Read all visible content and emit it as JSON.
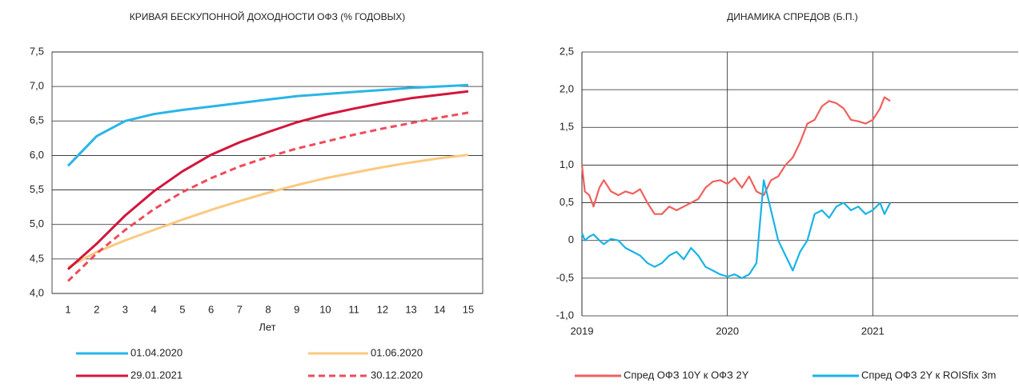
{
  "chart_data": [
    {
      "type": "line",
      "title": "КРИВАЯ БЕСКУПОННОЙ ДОХОДНОСТИ ОФЗ (% ГОДОВЫХ)",
      "x_label": "Лет",
      "categories": [
        "1",
        "2",
        "3",
        "4",
        "5",
        "6",
        "7",
        "8",
        "9",
        "10",
        "11",
        "12",
        "13",
        "14",
        "15"
      ],
      "ylim": [
        4.0,
        7.5
      ],
      "yticks": [
        {
          "value": 4.0,
          "label": "4,0"
        },
        {
          "value": 4.5,
          "label": "4,5"
        },
        {
          "value": 5.0,
          "label": "5,0"
        },
        {
          "value": 5.5,
          "label": "5,5"
        },
        {
          "value": 6.0,
          "label": "6,0"
        },
        {
          "value": 6.5,
          "label": "6,5"
        },
        {
          "value": 7.0,
          "label": "7,0"
        },
        {
          "value": 7.5,
          "label": "7,5"
        }
      ],
      "grid": true,
      "series": [
        {
          "name": "01.04.2020",
          "color": "#29b5e8",
          "dashed": false,
          "values": [
            5.85,
            6.28,
            6.5,
            6.6,
            6.66,
            6.71,
            6.76,
            6.81,
            6.86,
            6.89,
            6.92,
            6.95,
            6.98,
            7.0,
            7.02
          ]
        },
        {
          "name": "01.06.2020",
          "color": "#fcc980",
          "dashed": false,
          "values": [
            4.38,
            4.6,
            4.77,
            4.92,
            5.07,
            5.21,
            5.34,
            5.46,
            5.57,
            5.67,
            5.75,
            5.83,
            5.9,
            5.96,
            6.01
          ]
        },
        {
          "name": "29.01.2021",
          "color": "#d2163c",
          "dashed": false,
          "values": [
            4.35,
            4.72,
            5.13,
            5.48,
            5.77,
            6.01,
            6.19,
            6.34,
            6.48,
            6.59,
            6.68,
            6.76,
            6.83,
            6.88,
            6.93
          ]
        },
        {
          "name": "30.12.2020",
          "color": "#ef4b5b",
          "dashed": true,
          "values": [
            4.18,
            4.58,
            4.92,
            5.22,
            5.47,
            5.67,
            5.84,
            5.98,
            6.1,
            6.2,
            6.3,
            6.39,
            6.47,
            6.55,
            6.62
          ]
        }
      ]
    },
    {
      "type": "timeline",
      "title": "ДИНАМИКА СПРЕДОВ (Б.П.)",
      "x": [
        2019.0,
        2019.02,
        2019.05,
        2019.08,
        2019.12,
        2019.15,
        2019.2,
        2019.25,
        2019.3,
        2019.35,
        2019.4,
        2019.45,
        2019.5,
        2019.55,
        2019.6,
        2019.65,
        2019.7,
        2019.75,
        2019.8,
        2019.85,
        2019.9,
        2019.95,
        2020.0,
        2020.05,
        2020.1,
        2020.15,
        2020.2,
        2020.25,
        2020.3,
        2020.35,
        2020.4,
        2020.45,
        2020.5,
        2020.55,
        2020.6,
        2020.65,
        2020.7,
        2020.75,
        2020.8,
        2020.85,
        2020.9,
        2020.95,
        2021.0,
        2021.05,
        2021.08,
        2021.12
      ],
      "xlim": [
        2019,
        2022
      ],
      "xticks": [
        2019,
        2020,
        2021
      ],
      "ylim": [
        -1.0,
        2.5
      ],
      "yticks": [
        {
          "value": -1.0,
          "label": "-1,0"
        },
        {
          "value": -0.5,
          "label": "-0,5"
        },
        0,
        {
          "value": 0.5,
          "label": "0,5"
        },
        {
          "value": 1.0,
          "label": "1,0"
        },
        {
          "value": 1.5,
          "label": "1,5"
        },
        {
          "value": 2.0,
          "label": "2,0"
        },
        {
          "value": 2.5,
          "label": "2,5"
        }
      ],
      "grid": true,
      "series": [
        {
          "name": "Спред ОФЗ 10Y к ОФЗ 2Y",
          "color": "#f0605d",
          "values": [
            1.0,
            0.65,
            0.6,
            0.45,
            0.7,
            0.8,
            0.65,
            0.6,
            0.65,
            0.62,
            0.68,
            0.5,
            0.35,
            0.35,
            0.45,
            0.4,
            0.45,
            0.5,
            0.55,
            0.7,
            0.78,
            0.8,
            0.75,
            0.83,
            0.7,
            0.85,
            0.65,
            0.6,
            0.8,
            0.85,
            1.0,
            1.1,
            1.3,
            1.55,
            1.6,
            1.78,
            1.85,
            1.82,
            1.75,
            1.6,
            1.58,
            1.55,
            1.6,
            1.75,
            1.9,
            1.85
          ]
        },
        {
          "name": "Спред ОФЗ 2Y к ROISfix 3m",
          "color": "#1ab3e6",
          "values": [
            0.1,
            0.0,
            0.05,
            0.08,
            0.0,
            -0.05,
            0.02,
            0.0,
            -0.1,
            -0.15,
            -0.2,
            -0.3,
            -0.35,
            -0.3,
            -0.2,
            -0.15,
            -0.25,
            -0.1,
            -0.2,
            -0.35,
            -0.4,
            -0.45,
            -0.48,
            -0.45,
            -0.5,
            -0.45,
            -0.3,
            0.8,
            0.4,
            0.0,
            -0.2,
            -0.4,
            -0.15,
            0.0,
            0.35,
            0.4,
            0.3,
            0.45,
            0.5,
            0.4,
            0.45,
            0.35,
            0.4,
            0.5,
            0.35,
            0.5
          ]
        }
      ]
    }
  ]
}
